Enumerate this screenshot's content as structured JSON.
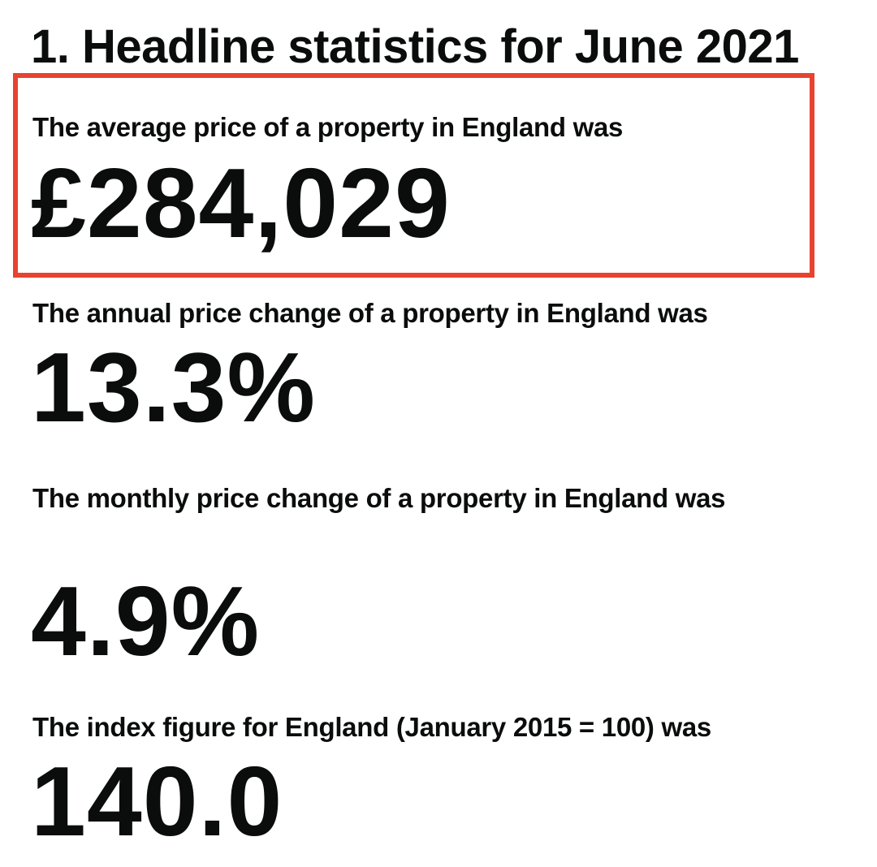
{
  "heading": "1. Headline statistics for June 2021",
  "stats": [
    {
      "label": "The average price of a property in England was",
      "value": "£284,029"
    },
    {
      "label": "The annual price change of a property in England was",
      "value": "13.3%"
    },
    {
      "label": "The monthly price change of a property in England was",
      "value": "4.9%"
    },
    {
      "label": "The index figure for England (January 2015 = 100) was",
      "value": "140.0"
    }
  ],
  "highlight": {
    "color": "#e8432f"
  }
}
